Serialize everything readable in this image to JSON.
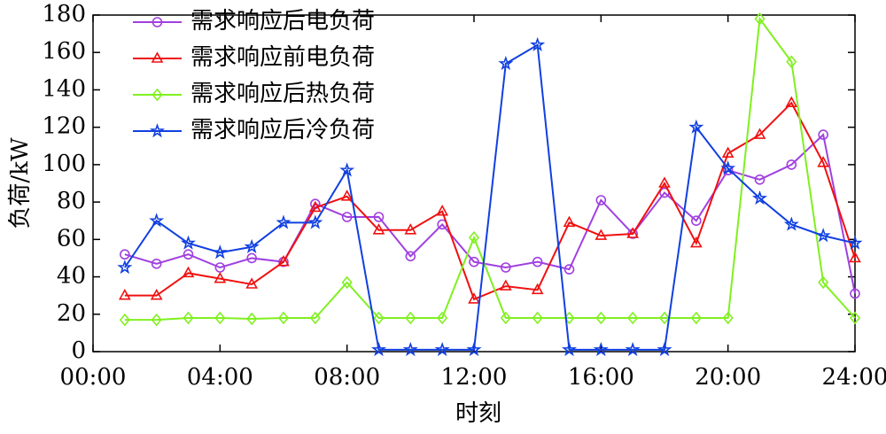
{
  "chart_data": {
    "type": "line",
    "x": [
      1,
      2,
      3,
      4,
      5,
      6,
      7,
      8,
      9,
      10,
      11,
      12,
      13,
      14,
      15,
      16,
      17,
      18,
      19,
      20,
      21,
      22,
      23,
      24
    ],
    "series": [
      {
        "name": "需求响应后电负荷",
        "color": "#a040e0",
        "marker": "circle",
        "values": [
          52,
          47,
          52,
          45,
          50,
          48,
          79,
          72,
          72,
          51,
          68,
          48,
          45,
          48,
          44,
          81,
          63,
          85,
          70,
          97,
          92,
          100,
          116,
          31
        ]
      },
      {
        "name": "需求响应前电负荷",
        "color": "#f01010",
        "marker": "triangle",
        "values": [
          30,
          30,
          42,
          39,
          36,
          48,
          77,
          83,
          65,
          65,
          75,
          28,
          35,
          33,
          69,
          62,
          63,
          90,
          58,
          106,
          116,
          133,
          101,
          50
        ]
      },
      {
        "name": "需求响应后热负荷",
        "color": "#80f020",
        "marker": "diamond",
        "values": [
          17,
          17,
          18,
          18,
          17.5,
          18,
          18,
          37,
          18,
          18,
          18,
          61,
          18,
          18,
          18,
          18,
          18,
          18,
          18,
          18,
          178,
          155,
          37,
          18
        ]
      },
      {
        "name": "需求响应后冷负荷",
        "color": "#1040e0",
        "marker": "star",
        "values": [
          45,
          70,
          58,
          53,
          56,
          69,
          69,
          97,
          1,
          1,
          1,
          1,
          154,
          164,
          1,
          1,
          1,
          1,
          120,
          98,
          82,
          68,
          62,
          58
        ]
      }
    ],
    "xlim": [
      0,
      24
    ],
    "xticks": [
      {
        "value": 0,
        "label": "00:00"
      },
      {
        "value": 4,
        "label": "04:00"
      },
      {
        "value": 8,
        "label": "08:00"
      },
      {
        "value": 12,
        "label": "12:00"
      },
      {
        "value": 16,
        "label": "16:00"
      },
      {
        "value": 20,
        "label": "20:00"
      },
      {
        "value": 24,
        "label": "24:00"
      }
    ],
    "ylim": [
      0,
      180
    ],
    "yticks": [
      0,
      20,
      40,
      60,
      80,
      100,
      120,
      140,
      160,
      180
    ],
    "xlabel": "时刻",
    "ylabel": "负荷/kW",
    "legend": "upper-left",
    "grid": false
  }
}
